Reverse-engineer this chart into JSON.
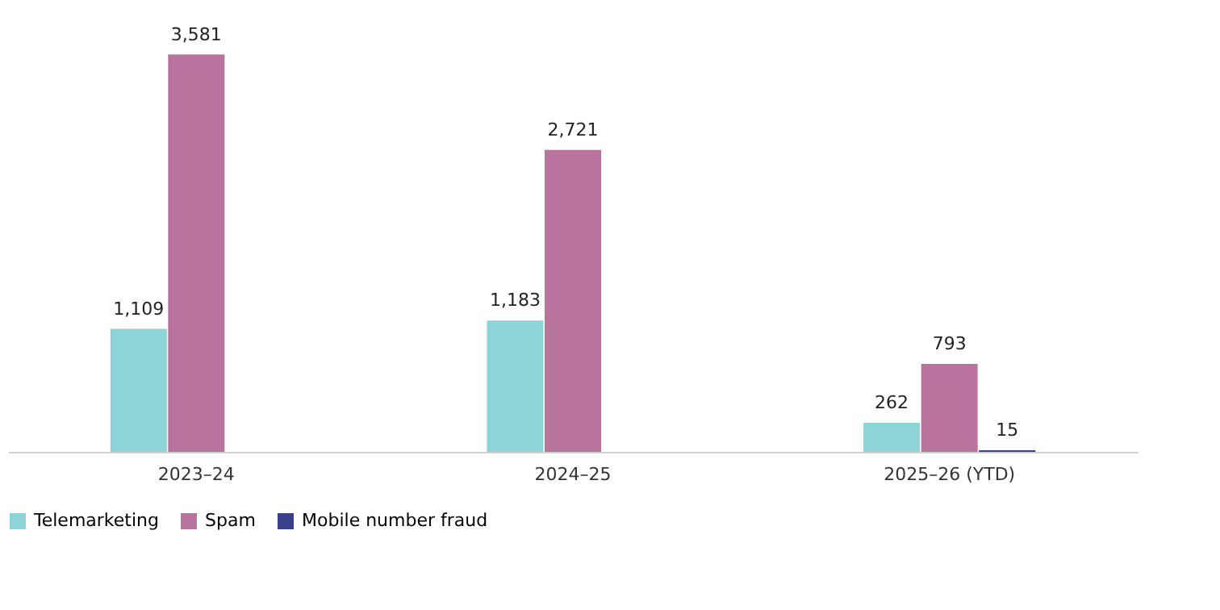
{
  "chart_data": {
    "type": "bar",
    "categories": [
      "2023–24",
      "2024–25",
      "2025–26 (YTD)"
    ],
    "series": [
      {
        "name": "Telemarketing",
        "color": "#8dd3d7",
        "values": [
          1109,
          1183,
          262
        ],
        "value_labels": [
          "1,109",
          "1,183",
          "262"
        ]
      },
      {
        "name": "Spam",
        "color": "#b9739f",
        "values": [
          3581,
          2721,
          793
        ],
        "value_labels": [
          "3,581",
          "2,721",
          "793"
        ]
      },
      {
        "name": "Mobile number fraud",
        "color": "#3a3f8c",
        "values": [
          null,
          null,
          15
        ],
        "value_labels": [
          null,
          null,
          "15"
        ]
      }
    ],
    "legend": "bottom"
  }
}
